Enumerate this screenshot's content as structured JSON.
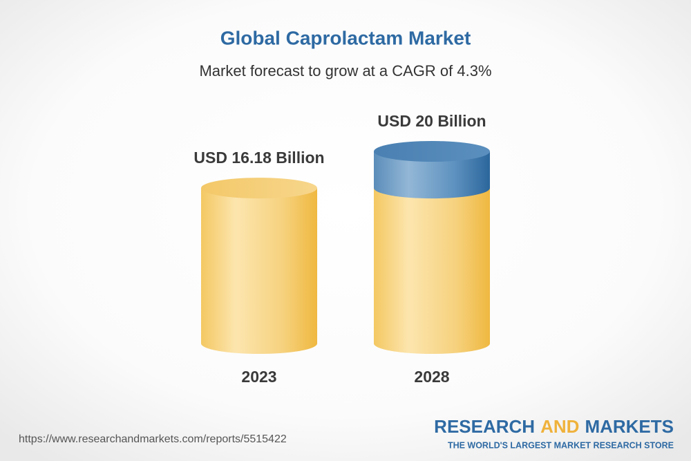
{
  "chart_data": {
    "type": "cylinder",
    "title": "Global Caprolactam Market",
    "subtitle": "Market forecast to grow at a CAGR of 4.3%",
    "categories": [
      "2023",
      "2028"
    ],
    "values": [
      16.18,
      20
    ],
    "value_labels": [
      "USD 16.18 Billion",
      "USD 20 Billion"
    ]
  },
  "footer": {
    "url": "https://www.researchandmarkets.com/reports/5515422",
    "brand": [
      "RESEARCH",
      "AND",
      "MARKETS"
    ],
    "tagline": "THE WORLD'S LARGEST MARKET RESEARCH STORE"
  }
}
